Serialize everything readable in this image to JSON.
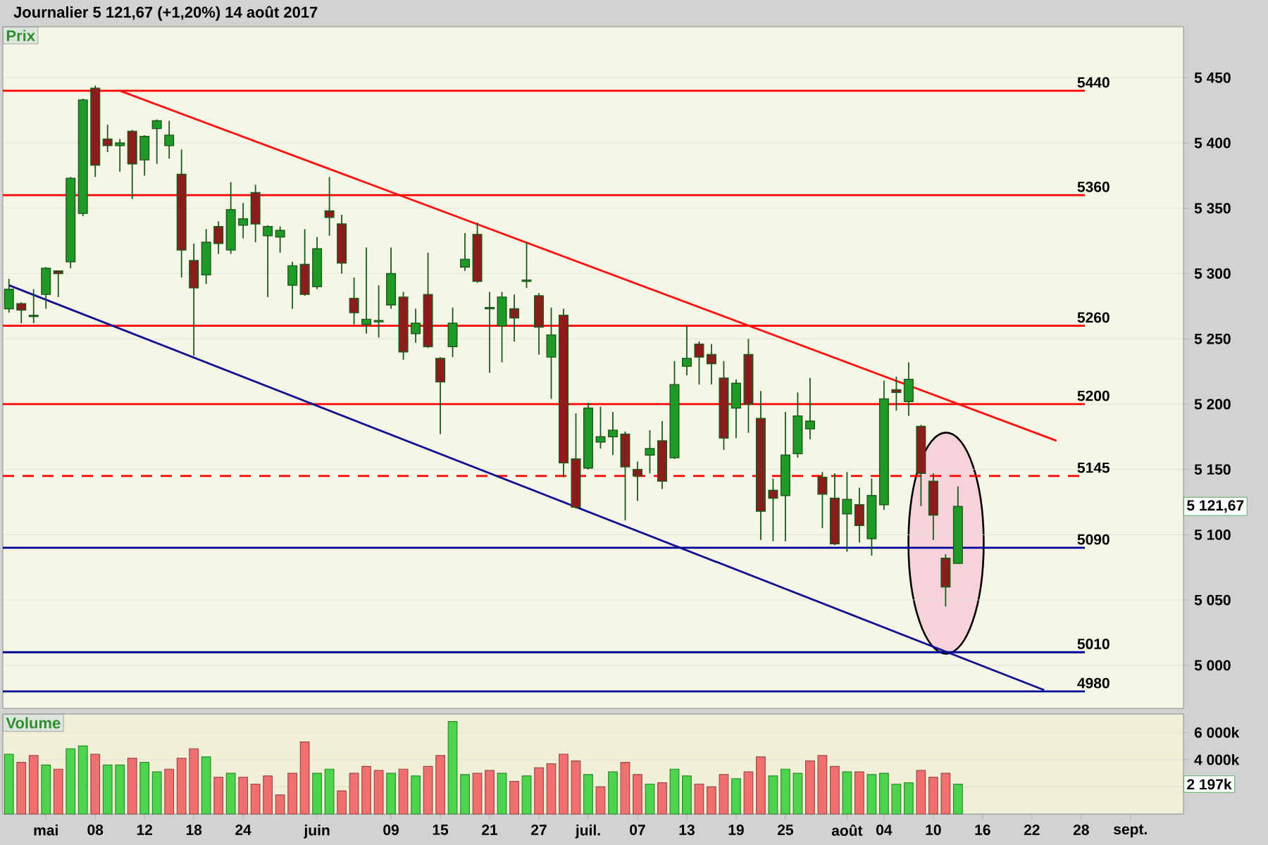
{
  "chart_data": [
    {
      "type": "candlestick",
      "title": "Journalier 5 121,67 (+1,20%) 14 août 2017",
      "ylabel": "Prix",
      "categories": [
        null,
        null,
        null,
        null,
        null,
        null,
        null,
        null,
        null,
        null,
        null,
        null,
        null,
        null,
        null,
        null,
        null,
        null,
        null,
        null,
        null,
        null,
        null,
        null,
        null,
        null,
        null,
        null,
        null,
        null,
        null,
        null,
        null,
        null,
        null,
        null,
        null,
        null,
        null,
        null,
        null,
        null,
        null,
        null,
        null,
        null,
        null,
        null,
        null,
        null,
        null,
        null,
        null,
        null,
        null,
        null,
        null,
        null,
        null,
        null,
        null,
        null,
        null,
        null,
        null,
        null,
        null,
        null,
        null,
        null,
        null,
        null,
        null,
        null,
        null,
        null,
        null,
        null,
        null,
        null,
        null,
        null,
        null,
        null,
        null,
        null,
        null,
        null,
        null,
        null,
        null,
        null,
        null,
        null,
        null,
        null
      ],
      "ohlc": [
        [
          5273,
          5296,
          5270,
          5288
        ],
        [
          5277,
          5278,
          5262,
          5272
        ],
        [
          5267,
          5288,
          5262,
          5268
        ],
        [
          5284,
          5305,
          5273,
          5304
        ],
        [
          5302,
          5302,
          5282,
          5300
        ],
        [
          5309,
          5374,
          5304,
          5373
        ],
        [
          5346,
          5434,
          5344,
          5433
        ],
        [
          5442,
          5444,
          5374,
          5383
        ],
        [
          5403,
          5414,
          5393,
          5398
        ],
        [
          5398,
          5403,
          5378,
          5400
        ],
        [
          5409,
          5410,
          5357,
          5384
        ],
        [
          5387,
          5406,
          5375,
          5405
        ],
        [
          5411,
          5418,
          5384,
          5417
        ],
        [
          5398,
          5417,
          5388,
          5406
        ],
        [
          5376,
          5395,
          5297,
          5318
        ],
        [
          5310,
          5323,
          5237,
          5289
        ],
        [
          5299,
          5334,
          5292,
          5324
        ],
        [
          5336,
          5340,
          5315,
          5323
        ],
        [
          5318,
          5370,
          5315,
          5349
        ],
        [
          5337,
          5354,
          5327,
          5342
        ],
        [
          5362,
          5368,
          5324,
          5338
        ],
        [
          5329,
          5337,
          5282,
          5336
        ],
        [
          5328,
          5336,
          5316,
          5333
        ],
        [
          5291,
          5309,
          5273,
          5306
        ],
        [
          5307,
          5334,
          5283,
          5284
        ],
        [
          5290,
          5328,
          5288,
          5319
        ],
        [
          5348,
          5374,
          5329,
          5343
        ],
        [
          5338,
          5345,
          5300,
          5308
        ],
        [
          5281,
          5297,
          5261,
          5270
        ],
        [
          5261,
          5320,
          5254,
          5265
        ],
        [
          5263,
          5291,
          5251,
          5264
        ],
        [
          5276,
          5320,
          5273,
          5300
        ],
        [
          5282,
          5286,
          5234,
          5240
        ],
        [
          5254,
          5273,
          5247,
          5262
        ],
        [
          5284,
          5316,
          5243,
          5244
        ],
        [
          5235,
          5236,
          5177,
          5217
        ],
        [
          5244,
          5274,
          5236,
          5262
        ],
        [
          5305,
          5331,
          5302,
          5311
        ],
        [
          5330,
          5339,
          5293,
          5294
        ],
        [
          5273,
          5286,
          5224,
          5274
        ],
        [
          5260,
          5286,
          5232,
          5282
        ],
        [
          5273,
          5284,
          5248,
          5266
        ],
        [
          5294,
          5324,
          5289,
          5295
        ],
        [
          5283,
          5285,
          5238,
          5259
        ],
        [
          5236,
          5274,
          5204,
          5253
        ],
        [
          5268,
          5273,
          5144,
          5155
        ],
        [
          5158,
          5193,
          5120,
          5121
        ],
        [
          5151,
          5201,
          5150,
          5197
        ],
        [
          5171,
          5198,
          5166,
          5175
        ],
        [
          5175,
          5194,
          5161,
          5180
        ],
        [
          5177,
          5179,
          5111,
          5152
        ],
        [
          5150,
          5156,
          5126,
          5145
        ],
        [
          5161,
          5180,
          5147,
          5166
        ],
        [
          5172,
          5187,
          5135,
          5141
        ],
        [
          5159,
          5233,
          5158,
          5215
        ],
        [
          5229,
          5260,
          5222,
          5235
        ],
        [
          5246,
          5248,
          5215,
          5236
        ],
        [
          5238,
          5246,
          5215,
          5231
        ],
        [
          5220,
          5233,
          5165,
          5174
        ],
        [
          5197,
          5219,
          5174,
          5216
        ],
        [
          5238,
          5250,
          5178,
          5200
        ],
        [
          5189,
          5210,
          5096,
          5118
        ],
        [
          5134,
          5143,
          5095,
          5128
        ],
        [
          5130,
          5194,
          5095,
          5161
        ],
        [
          5162,
          5209,
          5159,
          5191
        ],
        [
          5181,
          5220,
          5173,
          5187
        ],
        [
          5144,
          5148,
          5105,
          5131
        ],
        [
          5128,
          5147,
          5092,
          5093
        ],
        [
          5116,
          5148,
          5087,
          5127
        ],
        [
          5123,
          5136,
          5094,
          5107
        ],
        [
          5097,
          5143,
          5084,
          5130
        ],
        [
          5123,
          5218,
          5119,
          5204
        ],
        [
          5211,
          5221,
          5195,
          5209
        ],
        [
          5202,
          5232,
          5191,
          5219
        ],
        [
          5183,
          5184,
          5122,
          5147
        ],
        [
          5141,
          5147,
          5096,
          5115
        ],
        [
          5082,
          5085,
          5045,
          5060
        ],
        [
          5078,
          5137,
          5078,
          5121.67
        ],
        null,
        null,
        null,
        null,
        null,
        null,
        null,
        null,
        null,
        null,
        null,
        null,
        null,
        null,
        null,
        null,
        null,
        null
      ],
      "series": [
        {
          "type": "line",
          "color": "#ff1010",
          "values": [
            null,
            null,
            null,
            null,
            null,
            null,
            null,
            null,
            null,
            5440,
            null,
            null,
            null,
            null,
            null,
            null,
            null,
            null,
            null,
            null,
            null,
            null,
            null,
            null,
            null,
            null,
            null,
            null,
            null,
            null,
            null,
            null,
            null,
            null,
            null,
            null,
            null,
            null,
            null,
            null,
            null,
            null,
            null,
            null,
            null,
            null,
            null,
            null,
            null,
            null,
            null,
            null,
            null,
            null,
            null,
            null,
            null,
            null,
            null,
            null,
            null,
            null,
            null,
            null,
            null,
            null,
            null,
            null,
            null,
            null,
            null,
            null,
            null,
            null,
            null,
            null,
            null,
            null,
            null,
            null,
            null,
            null,
            null,
            null,
            null,
            5172,
            null,
            null,
            null,
            null,
            null,
            null,
            null,
            null,
            null,
            null
          ]
        },
        {
          "type": "line",
          "color": "#101090",
          "values": [
            5291,
            null,
            null,
            null,
            null,
            null,
            null,
            null,
            null,
            null,
            null,
            null,
            null,
            null,
            null,
            null,
            null,
            null,
            null,
            null,
            null,
            null,
            null,
            null,
            null,
            null,
            null,
            null,
            null,
            null,
            null,
            null,
            null,
            null,
            null,
            null,
            null,
            null,
            null,
            null,
            null,
            null,
            null,
            null,
            null,
            null,
            null,
            null,
            null,
            null,
            null,
            null,
            null,
            null,
            null,
            null,
            null,
            null,
            null,
            null,
            null,
            null,
            null,
            null,
            null,
            null,
            null,
            null,
            null,
            null,
            null,
            null,
            null,
            null,
            null,
            null,
            null,
            null,
            null,
            null,
            null,
            null,
            null,
            null,
            4981,
            null,
            null,
            null,
            null,
            null,
            null,
            null,
            null,
            null,
            null,
            null
          ]
        }
      ],
      "ref_lines": [
        {
          "axis": "y",
          "value": 5440,
          "label": "5440",
          "color": "#ff0000"
        },
        {
          "axis": "y",
          "value": 5360,
          "label": "5360",
          "color": "#ff0000"
        },
        {
          "axis": "y",
          "value": 5260,
          "label": "5260",
          "color": "#ff0000"
        },
        {
          "axis": "y",
          "value": 5200,
          "label": "5200",
          "color": "#ff0000"
        },
        {
          "axis": "y",
          "value": 5145,
          "label": "5145",
          "color": "#ff0000",
          "line_style": "dashed"
        },
        {
          "axis": "y",
          "value": 5090,
          "label": "5090",
          "color": "#000099"
        },
        {
          "axis": "y",
          "value": 5010,
          "label": "5010",
          "color": "#000099"
        },
        {
          "axis": "y",
          "value": 4980,
          "label": "4980",
          "color": "#000099"
        }
      ],
      "annotations": [
        "5 121,67"
      ],
      "ylim": [
        4967,
        5489
      ],
      "yticks": [
        {
          "value": 5000,
          "label": "5 000"
        },
        {
          "value": 5050,
          "label": "5 050"
        },
        {
          "value": 5100,
          "label": "5 100"
        },
        {
          "value": 5150,
          "label": "5 150"
        },
        {
          "value": 5200,
          "label": "5 200"
        },
        {
          "value": 5250,
          "label": "5 250"
        },
        {
          "value": 5300,
          "label": "5 300"
        },
        {
          "value": 5350,
          "label": "5 350"
        },
        {
          "value": 5400,
          "label": "5 400"
        },
        {
          "value": 5450,
          "label": "5 450"
        }
      ],
      "grid": "y",
      "tick_labels": "y"
    },
    {
      "type": "bar",
      "ylabel": "Volume",
      "categories": [
        null,
        null,
        null,
        "mai",
        null,
        null,
        null,
        "08",
        null,
        null,
        null,
        "12",
        null,
        null,
        null,
        "18",
        null,
        null,
        null,
        "24",
        null,
        null,
        null,
        null,
        null,
        "juin",
        null,
        null,
        null,
        null,
        null,
        "09",
        null,
        null,
        null,
        "15",
        null,
        null,
        null,
        "21",
        null,
        null,
        null,
        "27",
        null,
        null,
        null,
        "juil.",
        null,
        null,
        null,
        "07",
        null,
        null,
        null,
        "13",
        null,
        null,
        null,
        "19",
        null,
        null,
        null,
        "25",
        null,
        null,
        null,
        null,
        "août",
        null,
        null,
        "04",
        null,
        null,
        null,
        "10",
        null,
        null,
        null,
        "16",
        null,
        null,
        null,
        "22",
        null,
        null,
        null,
        "28",
        null,
        null,
        null,
        "sept.",
        null,
        null,
        null,
        null
      ],
      "values": [
        4400,
        3800,
        4300,
        3600,
        3300,
        4800,
        5000,
        4400,
        3600,
        3600,
        4100,
        3800,
        3100,
        3300,
        4100,
        4800,
        4200,
        2700,
        3000,
        2700,
        2200,
        2800,
        1400,
        3000,
        5300,
        3000,
        3300,
        1700,
        3000,
        3500,
        3200,
        3000,
        3300,
        2800,
        3500,
        4300,
        6800,
        2900,
        3000,
        3200,
        3000,
        2400,
        2800,
        3400,
        3700,
        4400,
        3900,
        2900,
        2000,
        3100,
        3800,
        2900,
        2200,
        2300,
        3300,
        2800,
        2200,
        2000,
        2900,
        2600,
        3100,
        4200,
        2800,
        3300,
        3000,
        3900,
        4300,
        3500,
        3100,
        3100,
        2900,
        3000,
        2200,
        2300,
        3200,
        2700,
        3000,
        2197,
        null,
        null,
        null,
        null,
        null,
        null,
        null,
        null,
        null,
        null,
        null,
        null,
        null,
        null,
        null,
        null,
        null,
        null
      ],
      "colors": [
        "#4cd44c",
        "#f07070",
        "#f07070",
        "#4cd44c",
        "#f07070",
        "#4cd44c",
        "#4cd44c",
        "#f07070",
        "#4cd44c",
        "#4cd44c",
        "#f07070",
        "#4cd44c",
        "#4cd44c",
        "#f07070",
        "#f07070",
        "#f07070",
        "#4cd44c",
        "#f07070",
        "#4cd44c",
        "#f07070",
        "#f07070",
        "#f07070",
        "#f07070",
        "#f07070",
        "#f07070",
        "#4cd44c",
        "#4cd44c",
        "#f07070",
        "#f07070",
        "#f07070",
        "#f07070",
        "#4cd44c",
        "#f07070",
        "#4cd44c",
        "#f07070",
        "#f07070",
        "#4cd44c",
        "#4cd44c",
        "#f07070",
        "#f07070",
        "#4cd44c",
        "#f07070",
        "#4cd44c",
        "#f07070",
        "#f07070",
        "#f07070",
        "#f07070",
        "#4cd44c",
        "#f07070",
        "#4cd44c",
        "#f07070",
        "#f07070",
        "#4cd44c",
        "#f07070",
        "#4cd44c",
        "#4cd44c",
        "#f07070",
        "#f07070",
        "#f07070",
        "#4cd44c",
        "#f07070",
        "#f07070",
        "#4cd44c",
        "#4cd44c",
        "#4cd44c",
        "#f07070",
        "#f07070",
        "#f07070",
        "#4cd44c",
        "#f07070",
        "#4cd44c",
        "#4cd44c",
        "#4cd44c",
        "#4cd44c",
        "#f07070",
        "#f07070",
        "#f07070",
        "#4cd44c",
        null,
        null,
        null,
        null,
        null,
        null,
        null,
        null,
        null,
        null,
        null,
        null,
        null,
        null,
        null,
        null,
        null,
        null
      ],
      "annotations": [
        "2 197k"
      ],
      "ylim": [
        0,
        7350
      ],
      "yticks": [
        {
          "value": 2000,
          "label": null
        },
        {
          "value": 4000,
          "label": "4 000k"
        },
        {
          "value": 6000,
          "label": "6 000k"
        }
      ],
      "grid": "y"
    }
  ]
}
